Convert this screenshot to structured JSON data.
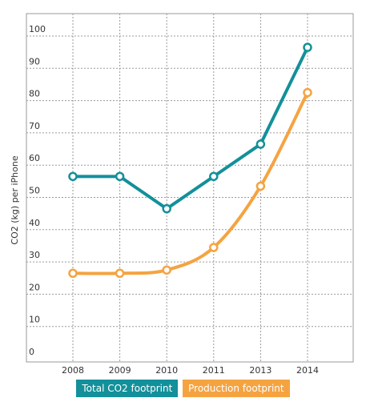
{
  "chart_data": {
    "type": "line",
    "categories": [
      "2008",
      "2009",
      "2010",
      "2011",
      "2013",
      "2014"
    ],
    "series": [
      {
        "name": "Total CO2 footprint",
        "values": [
          55,
          55,
          45,
          55,
          65,
          95
        ],
        "color": "#13909a"
      },
      {
        "name": "Production footprint",
        "values": [
          25,
          25,
          26,
          33,
          52,
          81
        ],
        "color": "#f5a341"
      }
    ],
    "ylabel": "CO2 (kg) per iPhone",
    "ylim": [
      0,
      100
    ],
    "yticks": [
      0,
      10,
      20,
      30,
      40,
      50,
      60,
      70,
      80,
      90,
      100
    ],
    "grid": true,
    "legend_position": "bottom-center"
  }
}
